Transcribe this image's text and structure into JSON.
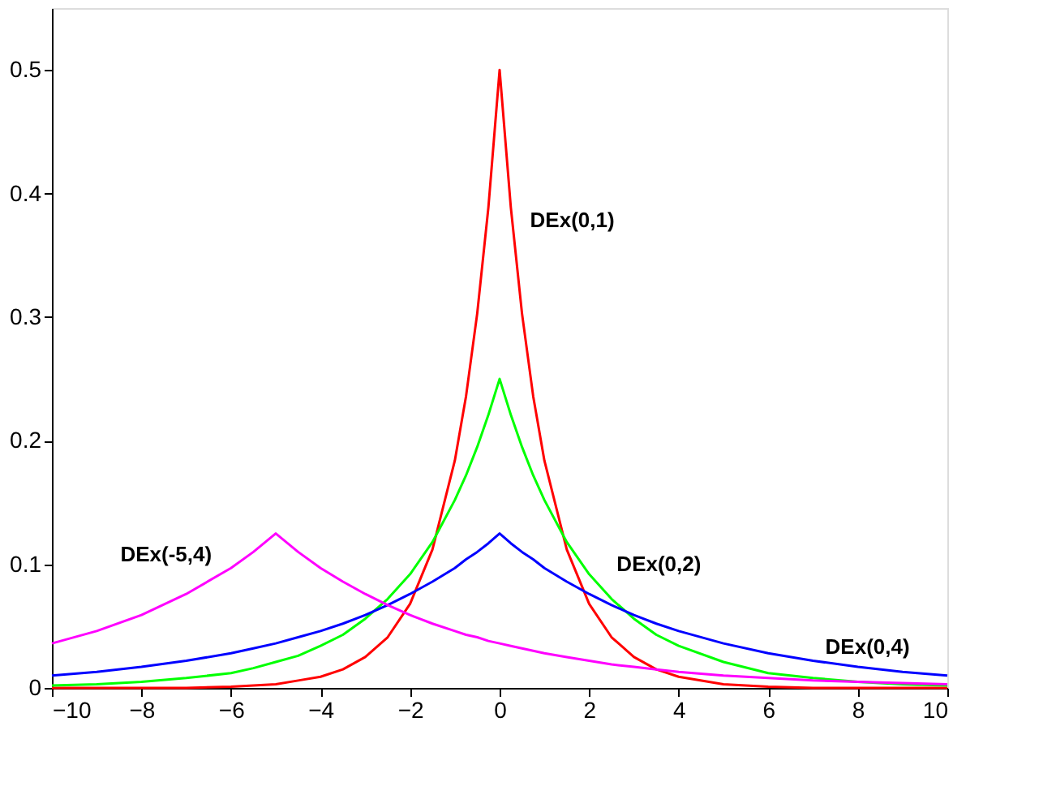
{
  "chart_data": {
    "type": "line",
    "x": [
      -10,
      -9,
      -8,
      -7,
      -6,
      -5.5,
      -5,
      -4.5,
      -4,
      -3.5,
      -3,
      -2.5,
      -2,
      -1.5,
      -1,
      -0.75,
      -0.5,
      -0.25,
      0,
      0.25,
      0.5,
      0.75,
      1,
      1.5,
      2,
      2.5,
      3,
      3.5,
      4,
      5,
      6,
      7,
      8,
      9,
      10
    ],
    "series": [
      {
        "name": "DEx(0,1)",
        "color": "#ff0000",
        "values": [
          0,
          0,
          0,
          0,
          0.001,
          0.002,
          0.003,
          0.006,
          0.009,
          0.015,
          0.025,
          0.041,
          0.068,
          0.112,
          0.184,
          0.236,
          0.303,
          0.389,
          0.5,
          0.389,
          0.303,
          0.236,
          0.184,
          0.112,
          0.068,
          0.041,
          0.025,
          0.015,
          0.009,
          0.003,
          0.001,
          0,
          0,
          0,
          0
        ]
      },
      {
        "name": "DEx(0,2)",
        "color": "#00ff00",
        "values": [
          0.002,
          0.003,
          0.005,
          0.008,
          0.012,
          0.016,
          0.021,
          0.026,
          0.034,
          0.043,
          0.056,
          0.072,
          0.092,
          0.118,
          0.152,
          0.172,
          0.195,
          0.221,
          0.25,
          0.221,
          0.195,
          0.172,
          0.152,
          0.118,
          0.092,
          0.072,
          0.056,
          0.043,
          0.034,
          0.021,
          0.012,
          0.008,
          0.005,
          0.003,
          0.002
        ]
      },
      {
        "name": "DEx(0,4)",
        "color": "#0000ff",
        "values": [
          0.01,
          0.013,
          0.017,
          0.022,
          0.028,
          0.032,
          0.036,
          0.041,
          0.046,
          0.052,
          0.059,
          0.067,
          0.076,
          0.086,
          0.097,
          0.104,
          0.11,
          0.117,
          0.125,
          0.117,
          0.11,
          0.104,
          0.097,
          0.086,
          0.076,
          0.067,
          0.059,
          0.052,
          0.046,
          0.036,
          0.028,
          0.022,
          0.017,
          0.013,
          0.01
        ]
      },
      {
        "name": "DEx(-5,4)",
        "color": "#ff00ff",
        "values": [
          0.036,
          0.046,
          0.059,
          0.076,
          0.097,
          0.11,
          0.125,
          0.11,
          0.097,
          0.086,
          0.076,
          0.067,
          0.059,
          0.052,
          0.046,
          0.043,
          0.041,
          0.038,
          0.036,
          0.034,
          0.032,
          0.03,
          0.028,
          0.025,
          0.022,
          0.019,
          0.017,
          0.015,
          0.013,
          0.01,
          0.008,
          0.006,
          0.005,
          0.004,
          0.003
        ]
      }
    ],
    "xlim": [
      -10,
      10
    ],
    "xticks": [
      -10,
      -8,
      -6,
      -4,
      -2,
      0,
      2,
      4,
      6,
      8,
      10
    ],
    "ylim": [
      0,
      0.55
    ],
    "yticks": [
      0,
      0.1,
      0.2,
      0.3,
      0.4,
      0.5
    ],
    "grid": false,
    "legend": false,
    "line_style": "solid",
    "marker": "none"
  }
}
